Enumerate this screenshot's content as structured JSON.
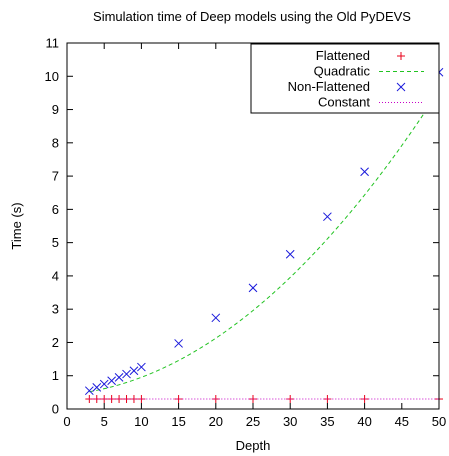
{
  "chart_data": {
    "type": "scatter",
    "title": "Simulation time of Deep models using the Old PyDEVS",
    "xlabel": "Depth",
    "ylabel": "Time (s)",
    "xlim": [
      0,
      50
    ],
    "ylim": [
      0,
      11
    ],
    "xticks": [
      "0",
      "5",
      "10",
      "15",
      "20",
      "25",
      "30",
      "35",
      "40",
      "45",
      "50"
    ],
    "yticks": [
      "0",
      "1",
      "2",
      "3",
      "4",
      "5",
      "6",
      "7",
      "8",
      "9",
      "10",
      "11"
    ],
    "grid": false,
    "legend_position": "top-right",
    "series": [
      {
        "name": "Flattened",
        "kind": "points",
        "marker": "plus",
        "color": "#e8001a",
        "x": [
          3,
          4,
          5,
          6,
          7,
          8,
          9,
          10,
          15,
          20,
          25,
          30,
          35,
          40,
          50
        ],
        "y": [
          0.3,
          0.3,
          0.3,
          0.3,
          0.3,
          0.3,
          0.3,
          0.3,
          0.3,
          0.3,
          0.3,
          0.3,
          0.3,
          0.3,
          0.3
        ]
      },
      {
        "name": "Quadratic",
        "kind": "curve",
        "dash": "dashed",
        "color": "#22c322",
        "curve": {
          "a": 0.00326,
          "b": 0.0197,
          "c": 0.43,
          "x_range": [
            3,
            50
          ]
        }
      },
      {
        "name": "Non-Flattened",
        "kind": "points",
        "marker": "cross",
        "color": "#1a1adb",
        "x": [
          3,
          4,
          5,
          6,
          7,
          8,
          9,
          10,
          15,
          20,
          25,
          30,
          35,
          40,
          50
        ],
        "y": [
          0.55,
          0.65,
          0.75,
          0.85,
          0.95,
          1.05,
          1.15,
          1.26,
          1.97,
          2.74,
          3.64,
          4.65,
          5.78,
          7.13,
          10.12
        ]
      },
      {
        "name": "Constant",
        "kind": "curve",
        "dash": "dotted",
        "color": "#c800c8",
        "curve": {
          "a": 0,
          "b": 0,
          "c": 0.3,
          "x_range": [
            3,
            50
          ]
        }
      }
    ]
  }
}
